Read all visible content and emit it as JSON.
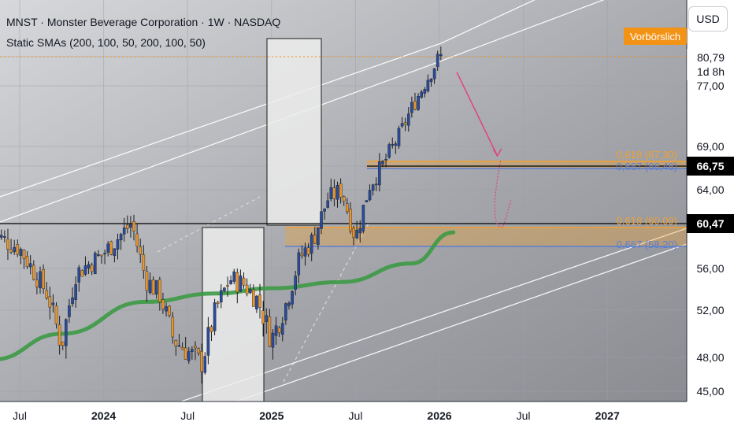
{
  "header": {
    "title": "MNST · Monster Beverage Corporation · 1W · NASDAQ",
    "indicator": "Static SMAs (200, 100, 50, 200, 100, 50)"
  },
  "currency_button": "USD",
  "annotation_label": "Vorbörslich",
  "price_tags": {
    "last_price": "80,79",
    "countdown": "1d 8h",
    "level_upper": "66,75",
    "level_lower": "60,47"
  },
  "fib_labels": {
    "upper_618": "0,618 (67,30)",
    "upper_667": "0,667 (66,46)",
    "lower_618": "0,618 (60,09)",
    "lower_667": "0,667 (58,20)"
  },
  "colors": {
    "up_candle": "#2a4a9a",
    "down_candle": "#e8952e",
    "sma": "#3c9a45",
    "projection": "#e0457b",
    "fib_618": "#f0a030",
    "fib_667": "#5b7fd4",
    "channel": "#ffffff",
    "premarket_badge": "#f39316"
  },
  "chart_data": {
    "type": "candlestick",
    "x_axis": {
      "tick_labels": [
        "Jul",
        "2024",
        "Jul",
        "2025",
        "Jul",
        "2026",
        "Jul",
        "2027"
      ],
      "tick_dates": [
        "2023-07",
        "2024-01",
        "2024-07",
        "2025-01",
        "2025-07",
        "2026-01",
        "2026-07",
        "2027-01"
      ],
      "range": [
        "2023-05",
        "2027-06"
      ]
    },
    "y_axis": {
      "tick_labels": [
        "45,00",
        "48,00",
        "52,00",
        "56,00",
        "60,47",
        "64,00",
        "66,75",
        "69,00",
        "77,00",
        "80,79"
      ],
      "tick_values": [
        45,
        48,
        52,
        56,
        60.47,
        64,
        66.75,
        69,
        77,
        80.79
      ],
      "range": [
        44.5,
        85
      ],
      "side": "right"
    },
    "close_series": [
      {
        "date": "2023-05",
        "close": 59.5
      },
      {
        "date": "2023-07",
        "close": 58.0
      },
      {
        "date": "2023-09",
        "close": 53.5
      },
      {
        "date": "2023-10",
        "close": 49.0
      },
      {
        "date": "2023-11",
        "close": 55.5
      },
      {
        "date": "2024-01",
        "close": 57.5
      },
      {
        "date": "2024-03",
        "close": 60.5
      },
      {
        "date": "2024-04",
        "close": 55.0
      },
      {
        "date": "2024-05",
        "close": 53.5
      },
      {
        "date": "2024-06",
        "close": 49.5
      },
      {
        "date": "2024-08",
        "close": 47.5
      },
      {
        "date": "2024-09",
        "close": 52.0
      },
      {
        "date": "2024-10",
        "close": 55.0
      },
      {
        "date": "2024-11",
        "close": 54.5
      },
      {
        "date": "2024-12",
        "close": 53.0
      },
      {
        "date": "2025-01",
        "close": 49.5
      },
      {
        "date": "2025-02",
        "close": 52.5
      },
      {
        "date": "2025-03",
        "close": 57.0
      },
      {
        "date": "2025-04",
        "close": 59.0
      },
      {
        "date": "2025-05",
        "close": 63.0
      },
      {
        "date": "2025-06",
        "close": 64.0
      },
      {
        "date": "2025-07",
        "close": 59.0
      },
      {
        "date": "2025-08",
        "close": 64.5
      },
      {
        "date": "2025-09",
        "close": 67.0
      },
      {
        "date": "2025-10",
        "close": 70.0
      },
      {
        "date": "2025-11",
        "close": 74.0
      },
      {
        "date": "2025-12",
        "close": 77.5
      },
      {
        "date": "2026-01",
        "close": 80.79
      }
    ],
    "sma_200": [
      {
        "date": "2023-05",
        "value": 47.8
      },
      {
        "date": "2023-10",
        "value": 50.0
      },
      {
        "date": "2024-04",
        "value": 52.8
      },
      {
        "date": "2024-09",
        "value": 53.6
      },
      {
        "date": "2025-01",
        "value": 54.1
      },
      {
        "date": "2025-06",
        "value": 54.7
      },
      {
        "date": "2025-11",
        "value": 56.5
      },
      {
        "date": "2026-02",
        "value": 59.6
      }
    ],
    "fib_levels": [
      {
        "ratio": 0.618,
        "value": 67.3
      },
      {
        "ratio": 0.667,
        "value": 66.46
      },
      {
        "ratio": 0.618,
        "value": 60.09
      },
      {
        "ratio": 0.667,
        "value": 58.2
      }
    ],
    "horizontal_levels": [
      66.75,
      60.47
    ],
    "projection_path": [
      {
        "date": "2026-01",
        "value": 79.8
      },
      {
        "date": "2026-03",
        "value": 67.2
      },
      {
        "date": "2026-05",
        "value": 60.3
      },
      {
        "date": "2026-06",
        "value": 62.5
      }
    ]
  }
}
